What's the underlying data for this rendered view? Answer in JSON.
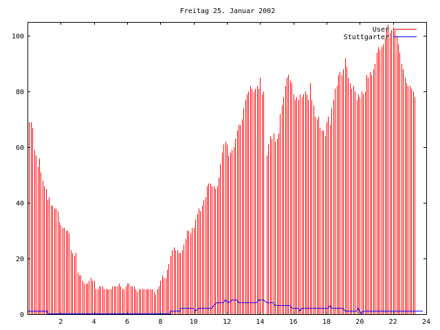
{
  "chart_data": {
    "type": "bar",
    "title": "Freitag 25. Januar 2002",
    "xlim": [
      0,
      24
    ],
    "ylim": [
      0,
      105
    ],
    "x_ticks": [
      "2",
      "4",
      "6",
      "8",
      "10",
      "12",
      "14",
      "16",
      "18",
      "20",
      "22",
      "24"
    ],
    "y_ticks": [
      "0",
      "20",
      "40",
      "60",
      "80",
      "100"
    ],
    "x_tick_values": [
      2,
      4,
      6,
      8,
      10,
      12,
      14,
      16,
      18,
      20,
      22,
      24
    ],
    "y_tick_values": [
      0,
      20,
      40,
      60,
      80,
      100
    ],
    "legend_position": "top-right",
    "grid": false,
    "series": [
      {
        "name": "User",
        "style": "impulses",
        "color": "#ff0000",
        "points": [
          [
            0.0,
            76
          ],
          [
            0.1,
            69
          ],
          [
            0.2,
            69
          ],
          [
            0.3,
            67
          ],
          [
            0.4,
            59
          ],
          [
            0.5,
            57
          ],
          [
            0.6,
            53
          ],
          [
            0.7,
            56
          ],
          [
            0.8,
            51
          ],
          [
            0.9,
            48
          ],
          [
            1.0,
            46
          ],
          [
            1.1,
            45
          ],
          [
            1.2,
            41
          ],
          [
            1.3,
            42
          ],
          [
            1.4,
            39
          ],
          [
            1.5,
            39
          ],
          [
            1.6,
            38
          ],
          [
            1.7,
            38
          ],
          [
            1.8,
            37
          ],
          [
            1.9,
            33
          ],
          [
            2.0,
            32
          ],
          [
            2.1,
            31
          ],
          [
            2.2,
            31
          ],
          [
            2.3,
            30
          ],
          [
            2.4,
            30
          ],
          [
            2.5,
            29
          ],
          [
            2.6,
            23
          ],
          [
            2.7,
            22
          ],
          [
            2.8,
            21
          ],
          [
            2.9,
            22
          ],
          [
            3.0,
            15
          ],
          [
            3.1,
            14
          ],
          [
            3.2,
            14
          ],
          [
            3.3,
            12
          ],
          [
            3.4,
            11
          ],
          [
            3.5,
            11
          ],
          [
            3.6,
            11
          ],
          [
            3.7,
            12
          ],
          [
            3.8,
            13
          ],
          [
            3.9,
            12
          ],
          [
            4.0,
            12
          ],
          [
            4.1,
            9
          ],
          [
            4.2,
            9
          ],
          [
            4.3,
            10
          ],
          [
            4.4,
            10
          ],
          [
            4.5,
            10
          ],
          [
            4.6,
            9
          ],
          [
            4.7,
            9
          ],
          [
            4.8,
            9
          ],
          [
            4.9,
            9
          ],
          [
            5.0,
            9
          ],
          [
            5.1,
            10
          ],
          [
            5.2,
            10
          ],
          [
            5.3,
            10
          ],
          [
            5.4,
            10
          ],
          [
            5.5,
            11
          ],
          [
            5.6,
            10
          ],
          [
            5.7,
            9
          ],
          [
            5.8,
            9
          ],
          [
            5.9,
            10
          ],
          [
            6.0,
            11
          ],
          [
            6.1,
            11
          ],
          [
            6.2,
            10
          ],
          [
            6.3,
            10
          ],
          [
            6.4,
            10
          ],
          [
            6.5,
            9
          ],
          [
            6.6,
            8
          ],
          [
            6.7,
            9
          ],
          [
            6.8,
            9
          ],
          [
            6.9,
            9
          ],
          [
            7.0,
            9
          ],
          [
            7.1,
            9
          ],
          [
            7.2,
            9
          ],
          [
            7.3,
            9
          ],
          [
            7.4,
            9
          ],
          [
            7.5,
            9
          ],
          [
            7.6,
            8
          ],
          [
            7.7,
            7
          ],
          [
            7.8,
            9
          ],
          [
            7.9,
            10
          ],
          [
            8.0,
            12
          ],
          [
            8.1,
            14
          ],
          [
            8.2,
            13
          ],
          [
            8.3,
            13
          ],
          [
            8.4,
            16
          ],
          [
            8.5,
            18
          ],
          [
            8.6,
            21
          ],
          [
            8.7,
            23
          ],
          [
            8.8,
            24
          ],
          [
            8.9,
            23
          ],
          [
            9.0,
            23
          ],
          [
            9.1,
            22
          ],
          [
            9.2,
            22
          ],
          [
            9.3,
            23
          ],
          [
            9.4,
            25
          ],
          [
            9.5,
            27
          ],
          [
            9.6,
            30
          ],
          [
            9.7,
            30
          ],
          [
            9.8,
            29
          ],
          [
            9.9,
            31
          ],
          [
            10.0,
            31
          ],
          [
            10.1,
            34
          ],
          [
            10.2,
            36
          ],
          [
            10.3,
            38
          ],
          [
            10.4,
            37
          ],
          [
            10.5,
            39
          ],
          [
            10.6,
            41
          ],
          [
            10.7,
            42
          ],
          [
            10.8,
            46
          ],
          [
            10.9,
            47
          ],
          [
            11.0,
            47
          ],
          [
            11.1,
            46
          ],
          [
            11.2,
            46
          ],
          [
            11.3,
            45
          ],
          [
            11.4,
            46
          ],
          [
            11.5,
            49
          ],
          [
            11.6,
            54
          ],
          [
            11.7,
            58
          ],
          [
            11.8,
            61
          ],
          [
            11.9,
            62
          ],
          [
            12.0,
            61
          ],
          [
            12.1,
            57
          ],
          [
            12.2,
            58
          ],
          [
            12.3,
            59
          ],
          [
            12.4,
            60
          ],
          [
            12.5,
            63
          ],
          [
            12.6,
            66
          ],
          [
            12.7,
            68
          ],
          [
            12.8,
            68
          ],
          [
            12.9,
            70
          ],
          [
            13.0,
            74
          ],
          [
            13.1,
            77
          ],
          [
            13.2,
            79
          ],
          [
            13.3,
            80
          ],
          [
            13.4,
            82
          ],
          [
            13.5,
            81
          ],
          [
            13.6,
            80
          ],
          [
            13.7,
            81
          ],
          [
            13.8,
            82
          ],
          [
            13.9,
            81
          ],
          [
            14.0,
            85
          ],
          [
            14.1,
            79
          ],
          [
            14.2,
            80
          ],
          [
            14.3,
            0
          ],
          [
            14.4,
            57
          ],
          [
            14.5,
            61
          ],
          [
            14.6,
            64
          ],
          [
            14.7,
            63
          ],
          [
            14.8,
            65
          ],
          [
            14.9,
            62
          ],
          [
            15.0,
            63
          ],
          [
            15.1,
            65
          ],
          [
            15.2,
            72
          ],
          [
            15.3,
            75
          ],
          [
            15.4,
            78
          ],
          [
            15.5,
            82
          ],
          [
            15.6,
            85
          ],
          [
            15.7,
            86
          ],
          [
            15.8,
            84
          ],
          [
            15.9,
            83
          ],
          [
            16.0,
            79
          ],
          [
            16.1,
            77
          ],
          [
            16.2,
            78
          ],
          [
            16.3,
            77
          ],
          [
            16.4,
            79
          ],
          [
            16.5,
            78
          ],
          [
            16.6,
            79
          ],
          [
            16.7,
            80
          ],
          [
            16.8,
            79
          ],
          [
            16.9,
            77
          ],
          [
            17.0,
            83
          ],
          [
            17.1,
            77
          ],
          [
            17.2,
            75
          ],
          [
            17.3,
            71
          ],
          [
            17.4,
            70
          ],
          [
            17.5,
            71
          ],
          [
            17.6,
            67
          ],
          [
            17.7,
            66
          ],
          [
            17.8,
            66
          ],
          [
            17.9,
            64
          ],
          [
            18.0,
            69
          ],
          [
            18.1,
            71
          ],
          [
            18.2,
            68
          ],
          [
            18.3,
            74
          ],
          [
            18.4,
            77
          ],
          [
            18.5,
            81
          ],
          [
            18.6,
            82
          ],
          [
            18.7,
            86
          ],
          [
            18.8,
            87
          ],
          [
            18.9,
            86
          ],
          [
            19.0,
            88
          ],
          [
            19.1,
            92
          ],
          [
            19.2,
            89
          ],
          [
            19.3,
            85
          ],
          [
            19.4,
            83
          ],
          [
            19.5,
            81
          ],
          [
            19.6,
            82
          ],
          [
            19.7,
            80
          ],
          [
            19.8,
            77
          ],
          [
            19.9,
            79
          ],
          [
            20.0,
            78
          ],
          [
            20.1,
            80
          ],
          [
            20.2,
            79
          ],
          [
            20.3,
            80
          ],
          [
            20.4,
            86
          ],
          [
            20.5,
            85
          ],
          [
            20.6,
            87
          ],
          [
            20.7,
            86
          ],
          [
            20.8,
            88
          ],
          [
            20.9,
            90
          ],
          [
            21.0,
            94
          ],
          [
            21.1,
            96
          ],
          [
            21.2,
            95
          ],
          [
            21.3,
            96
          ],
          [
            21.4,
            97
          ],
          [
            21.5,
            99
          ],
          [
            21.6,
            103
          ],
          [
            21.7,
            104
          ],
          [
            21.8,
            101
          ],
          [
            21.9,
            102
          ],
          [
            22.0,
            103
          ],
          [
            22.1,
            102
          ],
          [
            22.2,
            100
          ],
          [
            22.3,
            97
          ],
          [
            22.4,
            94
          ],
          [
            22.5,
            90
          ],
          [
            22.6,
            88
          ],
          [
            22.7,
            85
          ],
          [
            22.8,
            83
          ],
          [
            22.9,
            82
          ],
          [
            23.0,
            82
          ],
          [
            23.1,
            81
          ],
          [
            23.2,
            80
          ],
          [
            23.3,
            78
          ]
        ]
      },
      {
        "name": "Stuttgarter",
        "style": "line",
        "color": "#0000ff",
        "points": [
          [
            0.0,
            1
          ],
          [
            1.2,
            1
          ],
          [
            1.2,
            0
          ],
          [
            8.6,
            0
          ],
          [
            8.6,
            1
          ],
          [
            9.2,
            1
          ],
          [
            9.2,
            2
          ],
          [
            10.0,
            2
          ],
          [
            10.1,
            1
          ],
          [
            10.3,
            2
          ],
          [
            11.1,
            2
          ],
          [
            11.2,
            3
          ],
          [
            11.4,
            4
          ],
          [
            11.8,
            4
          ],
          [
            11.9,
            5
          ],
          [
            12.1,
            4
          ],
          [
            12.3,
            5
          ],
          [
            12.6,
            5
          ],
          [
            12.7,
            4
          ],
          [
            13.8,
            4
          ],
          [
            13.9,
            5
          ],
          [
            14.2,
            5
          ],
          [
            14.4,
            4
          ],
          [
            14.8,
            4
          ],
          [
            14.9,
            3
          ],
          [
            15.8,
            3
          ],
          [
            15.9,
            2
          ],
          [
            16.3,
            2
          ],
          [
            16.4,
            1
          ],
          [
            16.5,
            2
          ],
          [
            18.1,
            2
          ],
          [
            18.2,
            3
          ],
          [
            18.3,
            2
          ],
          [
            18.6,
            2
          ],
          [
            19.0,
            2
          ],
          [
            19.1,
            1
          ],
          [
            19.8,
            1
          ],
          [
            19.9,
            2
          ],
          [
            20.0,
            1
          ],
          [
            20.1,
            0
          ],
          [
            20.2,
            1
          ],
          [
            23.8,
            1
          ]
        ]
      }
    ]
  }
}
